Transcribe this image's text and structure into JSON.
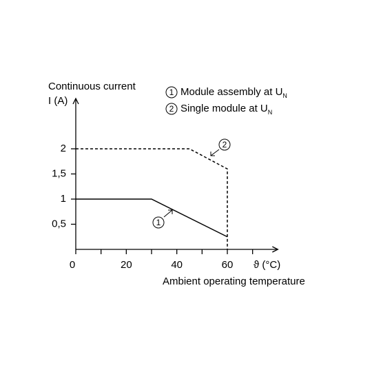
{
  "chart_data": {
    "type": "line",
    "y_label": [
      "Continuous current",
      "I (A)"
    ],
    "x_label": "Ambient operating temperature",
    "x_unit": "ϑ (°C)",
    "xlim": [
      0,
      80
    ],
    "ylim": [
      0,
      3
    ],
    "xticks": [
      0,
      20,
      40,
      60
    ],
    "x_minor_ticks": [
      10,
      30,
      50,
      70
    ],
    "yticks": [
      {
        "value": 0.5,
        "label": "0,5"
      },
      1,
      {
        "value": 1.5,
        "label": "1,5"
      },
      2
    ],
    "series": [
      {
        "name": "Module assembly at U",
        "subscript": "N",
        "marker": "1",
        "color": "#000000",
        "dashed": false,
        "x": [
          0,
          30,
          60
        ],
        "values": [
          1,
          1,
          0.25
        ]
      },
      {
        "name": "Single module at U",
        "subscript": "N",
        "marker": "2",
        "color": "#000000",
        "dashed": true,
        "x": [
          0,
          45,
          60,
          60
        ],
        "values": [
          2,
          2,
          1.6,
          0
        ]
      }
    ]
  }
}
